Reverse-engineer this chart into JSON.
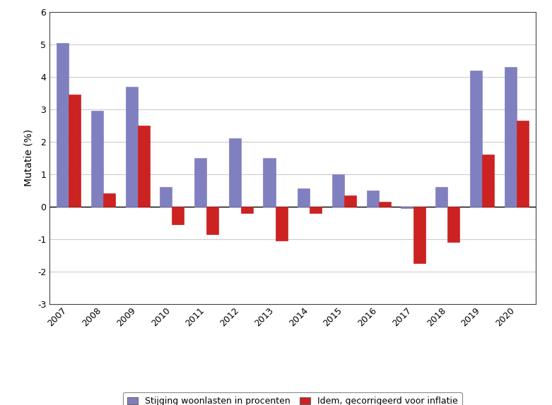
{
  "years": [
    2007,
    2008,
    2009,
    2010,
    2011,
    2012,
    2013,
    2014,
    2015,
    2016,
    2017,
    2018,
    2019,
    2020
  ],
  "series1": [
    5.05,
    2.95,
    3.7,
    0.6,
    1.5,
    2.1,
    1.5,
    0.55,
    1.0,
    0.5,
    -0.05,
    0.6,
    4.2,
    4.3
  ],
  "series2": [
    3.45,
    0.4,
    2.5,
    -0.55,
    -0.85,
    -0.2,
    -1.05,
    -0.2,
    0.35,
    0.15,
    -1.75,
    -1.1,
    1.6,
    2.65
  ],
  "color1": "#8080c0",
  "color2": "#cc2222",
  "ylabel": "Mutatie (%)",
  "ylim": [
    -3,
    6
  ],
  "yticks": [
    -3,
    -2,
    -1,
    0,
    1,
    2,
    3,
    4,
    5,
    6
  ],
  "legend1": "Stijging woonlasten in procenten",
  "legend2": "Idem, gecorrigeerd voor inflatie",
  "bar_width": 0.35,
  "background_color": "#ffffff",
  "grid_color": "#cccccc",
  "spine_color": "#444444"
}
